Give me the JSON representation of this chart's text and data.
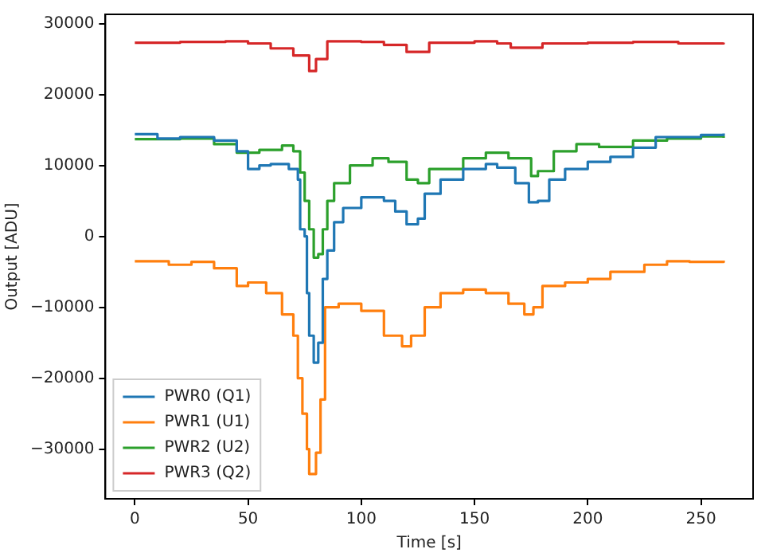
{
  "chart_data": {
    "type": "step",
    "xlabel": "Time [s]",
    "ylabel": "Output [ADU]",
    "xlim": [
      -13,
      273
    ],
    "ylim": [
      -37000,
      31300
    ],
    "xticks": [
      0,
      50,
      100,
      150,
      200,
      250
    ],
    "yticks": [
      -30000,
      -20000,
      -10000,
      0,
      10000,
      20000,
      30000
    ],
    "grid": false,
    "legend": "bottom left",
    "marker": "none",
    "line_style": "solid",
    "series": [
      {
        "name": "PWR0 (Q1)",
        "color": "#1f77b4",
        "x": [
          0,
          10,
          20,
          35,
          45,
          50,
          55,
          60,
          68,
          72,
          73,
          75,
          76,
          77,
          79,
          81,
          83,
          85,
          88,
          92,
          100,
          110,
          115,
          120,
          125,
          128,
          135,
          145,
          155,
          160,
          168,
          174,
          178,
          183,
          190,
          200,
          210,
          220,
          230,
          250,
          260
        ],
        "values": [
          14400,
          13800,
          14000,
          13500,
          12000,
          9500,
          10000,
          10200,
          9500,
          8000,
          1000,
          0,
          -8000,
          -14000,
          -17800,
          -15000,
          -6000,
          -2000,
          2000,
          4000,
          5500,
          5000,
          3500,
          1700,
          2500,
          6000,
          8000,
          9500,
          10200,
          9700,
          7500,
          4800,
          5000,
          8000,
          9500,
          10500,
          11200,
          12500,
          14000,
          14300,
          14500
        ]
      },
      {
        "name": "PWR1 (U1)",
        "color": "#ff7f0e",
        "x": [
          0,
          15,
          25,
          35,
          45,
          50,
          58,
          65,
          70,
          72,
          74,
          76,
          77,
          80,
          82,
          84,
          90,
          100,
          110,
          118,
          122,
          128,
          135,
          145,
          155,
          165,
          172,
          176,
          180,
          190,
          200,
          210,
          225,
          235,
          245,
          260
        ],
        "values": [
          -3500,
          -4000,
          -3600,
          -4500,
          -7000,
          -6500,
          -8000,
          -11000,
          -14000,
          -20000,
          -25000,
          -30000,
          -33500,
          -30500,
          -23000,
          -10000,
          -9500,
          -10500,
          -14000,
          -15500,
          -14000,
          -10000,
          -8000,
          -7500,
          -8000,
          -9500,
          -11000,
          -10000,
          -7000,
          -6500,
          -6000,
          -5000,
          -4000,
          -3500,
          -3600,
          -3400
        ]
      },
      {
        "name": "PWR2 (U2)",
        "color": "#2ca02c",
        "x": [
          0,
          20,
          35,
          45,
          55,
          65,
          70,
          73,
          75,
          77,
          79,
          81,
          83,
          85,
          88,
          95,
          105,
          112,
          120,
          125,
          130,
          145,
          155,
          165,
          175,
          178,
          185,
          195,
          205,
          220,
          235,
          250,
          260
        ],
        "values": [
          13700,
          13800,
          13000,
          11800,
          12200,
          12800,
          12000,
          9000,
          5000,
          1000,
          -3000,
          -2500,
          1000,
          5000,
          7500,
          10000,
          11000,
          10500,
          8000,
          7500,
          9500,
          11000,
          11800,
          11000,
          8500,
          9200,
          12000,
          13000,
          12600,
          13500,
          13800,
          14100,
          13900
        ]
      },
      {
        "name": "PWR3 (Q2)",
        "color": "#d62728",
        "x": [
          0,
          20,
          40,
          50,
          60,
          70,
          77,
          80,
          85,
          100,
          110,
          120,
          130,
          150,
          160,
          166,
          180,
          200,
          220,
          240,
          260
        ],
        "values": [
          27300,
          27400,
          27500,
          27200,
          26500,
          25500,
          23300,
          25000,
          27500,
          27400,
          27000,
          26000,
          27300,
          27500,
          27200,
          26600,
          27200,
          27300,
          27400,
          27200,
          27300
        ]
      }
    ]
  }
}
